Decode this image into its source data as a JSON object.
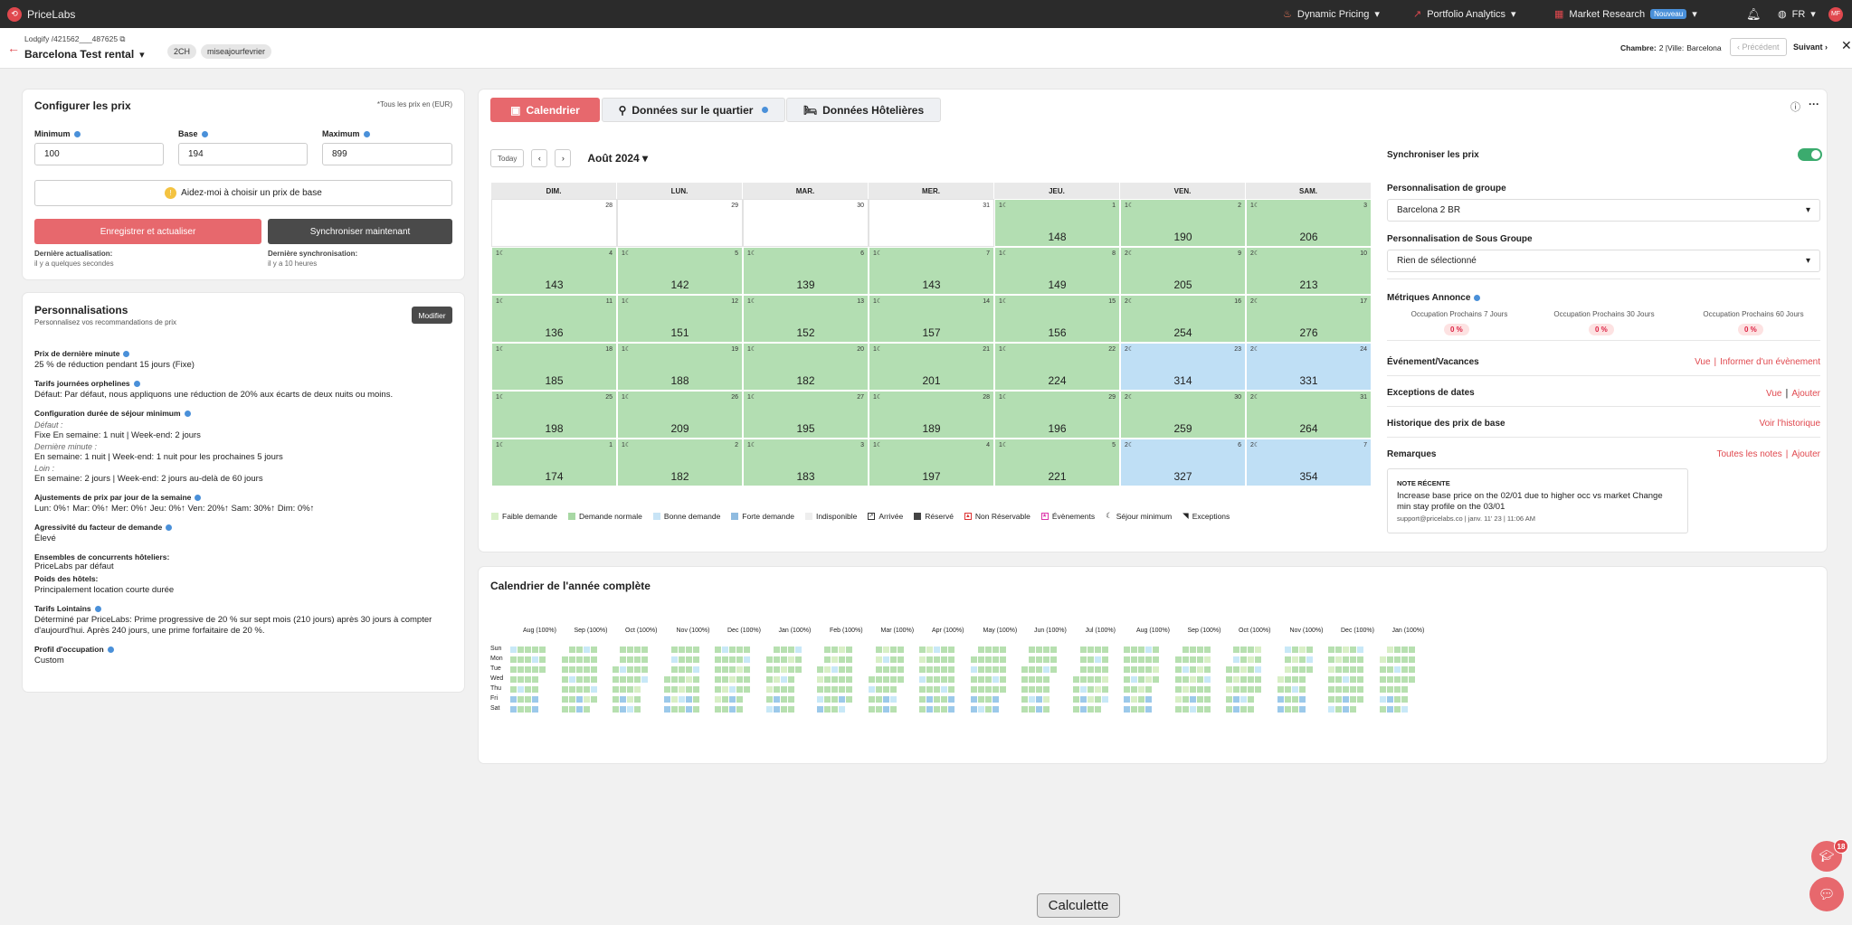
{
  "app": {
    "brand": "PriceLabs",
    "nav": {
      "dynamic_pricing": "Dynamic Pricing",
      "portfolio": "Portfolio Analytics",
      "market": "Market Research",
      "market_badge": "Nouveau",
      "lang": "FR",
      "avatar": "MF"
    }
  },
  "subheader": {
    "breadcrumb": "Lodgify /421562___487625",
    "listing": "Barcelona Test rental",
    "chip1": "2CH",
    "chip2": "miseajourfevrier",
    "room_label": "Chambre:",
    "room_val": "2 |Ville:",
    "city": "Barcelona",
    "prev": "Précédent",
    "next": "Suivant"
  },
  "config": {
    "title": "Configurer les prix",
    "note": "*Tous les prix en (EUR)",
    "min_label": "Minimum",
    "min_val": "100",
    "base_label": "Base",
    "base_val": "194",
    "max_label": "Maximum",
    "max_val": "899",
    "help": "Aidez-moi à choisir un prix de base",
    "save": "Enregistrer et actualiser",
    "sync": "Synchroniser maintenant",
    "last_update_label": "Dernière actualisation:",
    "last_update_val": "il y a quelques secondes",
    "last_sync_label": "Dernière synchronisation:",
    "last_sync_val": "il y a 10 heures"
  },
  "pers": {
    "title": "Personnalisations",
    "subtitle": "Personnalisez vos recommandations de prix",
    "edit": "Modifier",
    "b1_t": "Prix de dernière minute",
    "b1_v": "25 % de réduction pendant 15 jours (Fixe)",
    "b2_t": "Tarifs journées orphelines",
    "b2_v": "Défaut: Par défaut, nous appliquons une réduction de 20% aux écarts de deux nuits ou moins.",
    "b3_t": "Configuration durée de séjour minimum",
    "b3_d": "Défaut :",
    "b3_d1": "Fixe En semaine: 1 nuit | Week-end: 2 jours",
    "b3_l": "Dernière minute :",
    "b3_l1": "En semaine: 1 nuit | Week-end: 1 nuit pour les prochaines 5 jours",
    "b3_f": "Loin :",
    "b3_f1": "En semaine: 2 jours | Week-end: 2 jours au-delà de 60 jours",
    "b4_t": "Ajustements de prix par jour de la semaine",
    "b4_v": "Lun: 0%↑ Mar: 0%↑ Mer: 0%↑ Jeu: 0%↑ Ven: 20%↑ Sam: 30%↑ Dim: 0%↑",
    "b5_t": "Agressivité du facteur de demande",
    "b5_v": "Élevé",
    "b6_t": "Ensembles de concurrents hôteliers:",
    "b6_v": "PriceLabs par défaut",
    "b7_t": "Poids des hôtels:",
    "b7_v": "Principalement location courte durée",
    "b8_t": "Tarifs Lointains",
    "b8_v": "Déterminé par PriceLabs: Prime progressive de 20 % sur sept mois (210 jours) après 30 jours à compter d'aujourd'hui. Après 240 jours, une prime forfaitaire de 20 %.",
    "b9_t": "Profil d'occupation",
    "b9_v": "Custom"
  },
  "tabs": {
    "t1": "Calendrier",
    "t2": "Données sur le quartier",
    "t3": "Données Hôtelières"
  },
  "calendar": {
    "today": "Today",
    "month": "Août 2024",
    "dows": [
      "DIM.",
      "LUN.",
      "MAR.",
      "MER.",
      "JEU.",
      "VEN.",
      "SAM."
    ],
    "cells": [
      {
        "d": "28",
        "p": "",
        "c": "e",
        "m": ""
      },
      {
        "d": "29",
        "p": "",
        "c": "e",
        "m": ""
      },
      {
        "d": "30",
        "p": "",
        "c": "e",
        "m": ""
      },
      {
        "d": "31",
        "p": "",
        "c": "e",
        "m": ""
      },
      {
        "d": "1",
        "p": "148",
        "c": "g",
        "m": "1☾"
      },
      {
        "d": "2",
        "p": "190",
        "c": "g",
        "m": "1☾"
      },
      {
        "d": "3",
        "p": "206",
        "c": "g",
        "m": "1☾"
      },
      {
        "d": "4",
        "p": "143",
        "c": "g",
        "m": "1☾"
      },
      {
        "d": "5",
        "p": "142",
        "c": "g",
        "m": "1☾"
      },
      {
        "d": "6",
        "p": "139",
        "c": "g",
        "m": "1☾"
      },
      {
        "d": "7",
        "p": "143",
        "c": "g",
        "m": "1☾"
      },
      {
        "d": "8",
        "p": "149",
        "c": "g",
        "m": "1☾"
      },
      {
        "d": "9",
        "p": "205",
        "c": "g",
        "m": "2☾"
      },
      {
        "d": "10",
        "p": "213",
        "c": "g",
        "m": "2☾"
      },
      {
        "d": "11",
        "p": "136",
        "c": "g",
        "m": "1☾"
      },
      {
        "d": "12",
        "p": "151",
        "c": "g",
        "m": "1☾"
      },
      {
        "d": "13",
        "p": "152",
        "c": "g",
        "m": "1☾"
      },
      {
        "d": "14",
        "p": "157",
        "c": "g",
        "m": "1☾"
      },
      {
        "d": "15",
        "p": "156",
        "c": "g",
        "m": "1☾"
      },
      {
        "d": "16",
        "p": "254",
        "c": "g",
        "m": "2☾"
      },
      {
        "d": "17",
        "p": "276",
        "c": "g",
        "m": "2☾"
      },
      {
        "d": "18",
        "p": "185",
        "c": "g",
        "m": "1☾"
      },
      {
        "d": "19",
        "p": "188",
        "c": "g",
        "m": "1☾"
      },
      {
        "d": "20",
        "p": "182",
        "c": "g",
        "m": "1☾"
      },
      {
        "d": "21",
        "p": "201",
        "c": "g",
        "m": "1☾"
      },
      {
        "d": "22",
        "p": "224",
        "c": "g",
        "m": "1☾"
      },
      {
        "d": "23",
        "p": "314",
        "c": "b",
        "m": "2☾"
      },
      {
        "d": "24",
        "p": "331",
        "c": "b",
        "m": "2☾"
      },
      {
        "d": "25",
        "p": "198",
        "c": "g",
        "m": "1☾"
      },
      {
        "d": "26",
        "p": "209",
        "c": "g",
        "m": "1☾"
      },
      {
        "d": "27",
        "p": "195",
        "c": "g",
        "m": "1☾"
      },
      {
        "d": "28",
        "p": "189",
        "c": "g",
        "m": "1☾"
      },
      {
        "d": "29",
        "p": "196",
        "c": "g",
        "m": "1☾"
      },
      {
        "d": "30",
        "p": "259",
        "c": "g",
        "m": "2☾"
      },
      {
        "d": "31",
        "p": "264",
        "c": "g",
        "m": "2☾"
      },
      {
        "d": "1",
        "p": "174",
        "c": "g",
        "m": "1☾"
      },
      {
        "d": "2",
        "p": "182",
        "c": "g",
        "m": "1☾"
      },
      {
        "d": "3",
        "p": "183",
        "c": "g",
        "m": "1☾"
      },
      {
        "d": "4",
        "p": "197",
        "c": "g",
        "m": "1☾"
      },
      {
        "d": "5",
        "p": "221",
        "c": "g",
        "m": "1☾"
      },
      {
        "d": "6",
        "p": "327",
        "c": "b",
        "m": "2☾"
      },
      {
        "d": "7",
        "p": "354",
        "c": "b",
        "m": "2☾"
      }
    ],
    "legend": {
      "l1": "Faible demande",
      "l2": "Demande normale",
      "l3": "Bonne demande",
      "l4": "Forte demande",
      "l5": "Indisponible",
      "l6": "Arrivée",
      "l7": "Réservé",
      "l8": "Non Réservable",
      "l9": "Évènements",
      "l10": "Séjour minimum",
      "l11": "Exceptions"
    }
  },
  "right": {
    "sync": "Synchroniser les prix",
    "group_t": "Personnalisation de groupe",
    "group_v": "Barcelona 2 BR",
    "subgroup_t": "Personnalisation de Sous Groupe",
    "subgroup_v": "Rien de sélectionné",
    "metrics_t": "Métriques Annonce",
    "m1": "Occupation Prochains 7 Jours",
    "m2": "Occupation Prochains 30 Jours",
    "m3": "Occupation Prochains 60 Jours",
    "m1v": "0 %",
    "m2v": "0 %",
    "m3v": "0 %",
    "events_t": "Événement/Vacances",
    "events_a": "Vue",
    "events_b": "Informer d'un évènement",
    "exc_t": "Exceptions de dates",
    "exc_a": "Vue",
    "exc_b": "Ajouter",
    "hist_t": "Historique des prix de base",
    "hist_a": "Voir l'historique",
    "notes_t": "Remarques",
    "notes_a": "Toutes les notes",
    "notes_b": "Ajouter",
    "note_title": "NOTE RÉCENTE",
    "note_body": "Increase base price on the 02/01 due to higher occ vs market Change min stay profile on the 03/01",
    "note_meta": "support@pricelabs.co | janv. 11' 23 | 11:06 AM"
  },
  "year": {
    "title": "Calendrier de l'année complète",
    "months": [
      "Aug (100%)",
      "Sep (100%)",
      "Oct (100%)",
      "Nov (100%)",
      "Dec (100%)",
      "Jan (100%)",
      "Feb (100%)",
      "Mar (100%)",
      "Apr (100%)",
      "May (100%)",
      "Jun (100%)",
      "Jul (100%)",
      "Aug (100%)",
      "Sep (100%)",
      "Oct (100%)",
      "Nov (100%)",
      "Dec (100%)",
      "Jan (100%)"
    ],
    "days": [
      "Sun",
      "Mon",
      "Tue",
      "Wed",
      "Thu",
      "Fri",
      "Sat"
    ]
  },
  "footer": {
    "calc": "Calculette",
    "notif": "18"
  }
}
